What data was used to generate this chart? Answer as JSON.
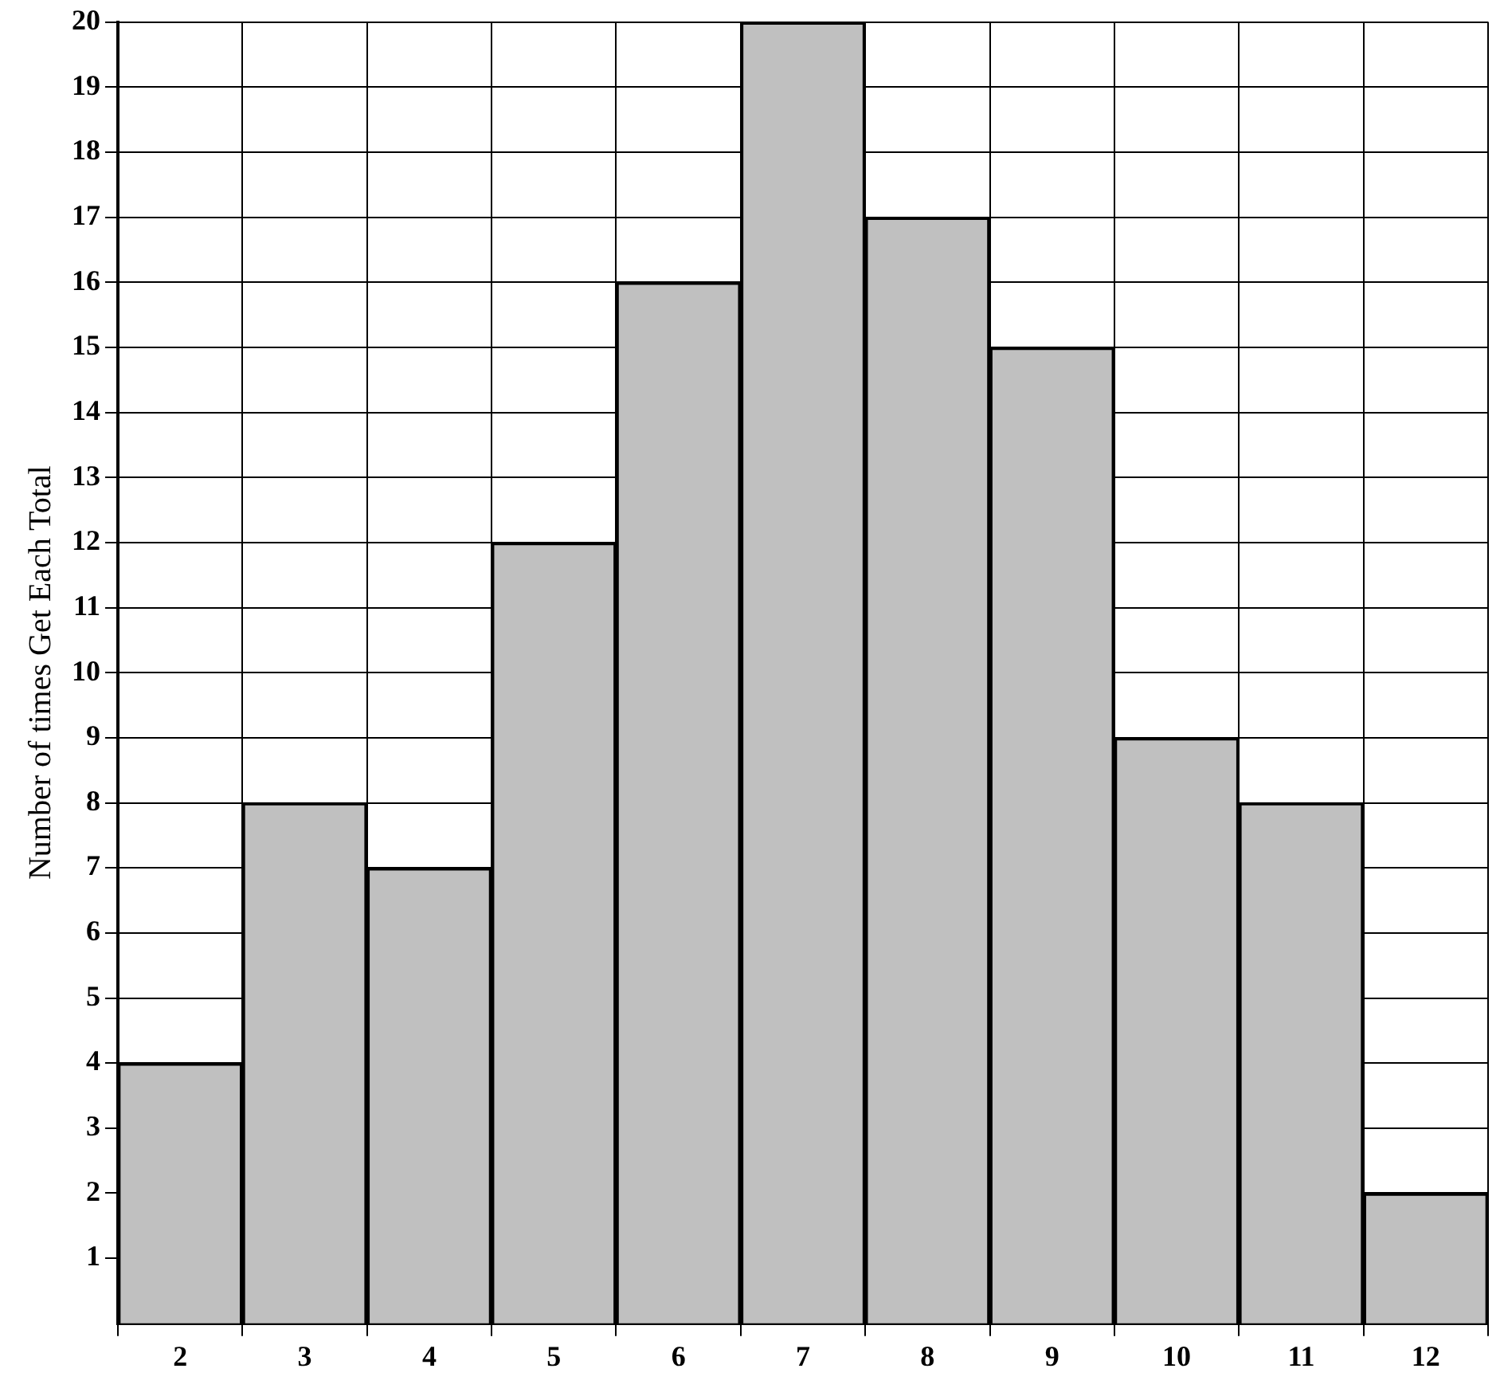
{
  "chart_data": {
    "type": "bar",
    "ylabel": "Number of times Get Each Total",
    "categories": [
      "2",
      "3",
      "4",
      "5",
      "6",
      "7",
      "8",
      "9",
      "10",
      "11",
      "12"
    ],
    "values": [
      4,
      8,
      7,
      12,
      16,
      20,
      17,
      15,
      9,
      8,
      2
    ],
    "color": "#c0c0c0",
    "ylim": [
      0,
      20
    ],
    "yticks": [
      1,
      2,
      3,
      4,
      5,
      6,
      7,
      8,
      9,
      10,
      11,
      12,
      13,
      14,
      15,
      16,
      17,
      18,
      19,
      20
    ],
    "grid": true,
    "legend": false
  }
}
